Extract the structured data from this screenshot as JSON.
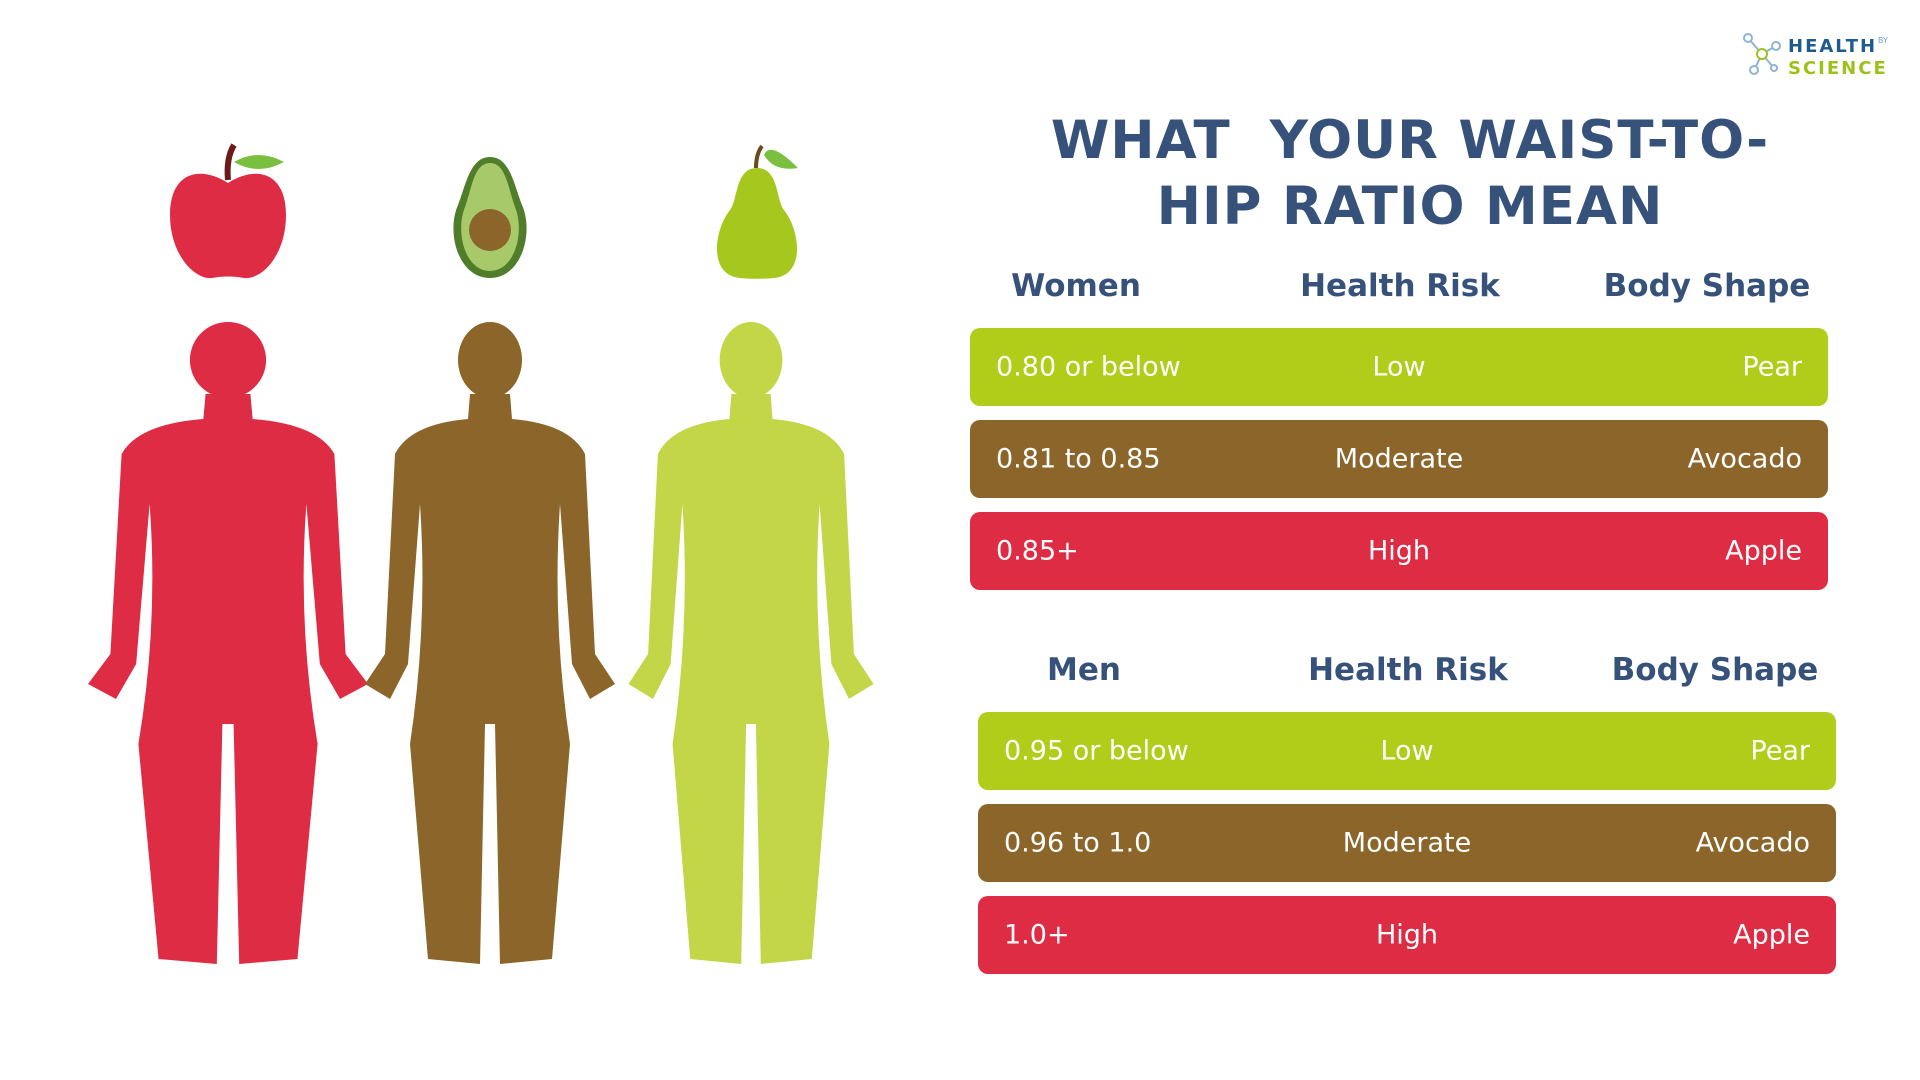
{
  "logo": {
    "line1": "HEALTH",
    "by": "BY",
    "line2": "SCIENCE"
  },
  "title": "WHAT  YOUR WAIST-TO-HIP RATIO MEAN",
  "tables": [
    {
      "header": [
        "Women",
        "Health Risk",
        "Body Shape"
      ],
      "rows": [
        [
          "0.80 or below",
          "Low",
          "Pear"
        ],
        [
          "0.81 to 0.85",
          "Moderate",
          "Avocado"
        ],
        [
          "0.85+",
          "High",
          "Apple"
        ]
      ]
    },
    {
      "header": [
        "Men",
        "Health Risk",
        "Body Shape"
      ],
      "rows": [
        [
          "0.95 or below",
          "Low",
          "Pear"
        ],
        [
          "0.96 to 1.0",
          "Moderate",
          "Avocado"
        ],
        [
          "1.0+",
          "High",
          "Apple"
        ]
      ]
    }
  ]
}
